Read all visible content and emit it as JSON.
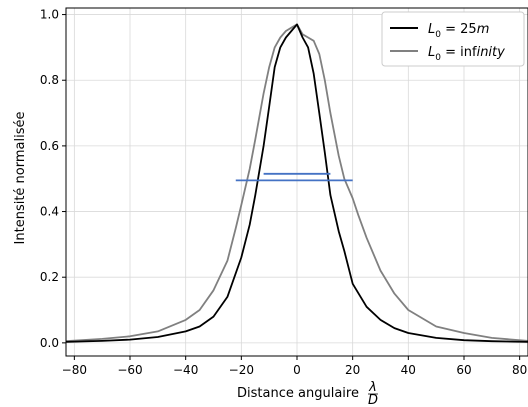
{
  "chart_data": {
    "type": "line",
    "xlabel": "Distance angulaire",
    "xlabel_frac": {
      "num": "λ",
      "den": "D"
    },
    "ylabel": "Intensité normalisée",
    "xlim": [
      -83,
      83
    ],
    "ylim": [
      -0.04,
      1.02
    ],
    "xticks": [
      -80,
      -60,
      -40,
      -20,
      0,
      20,
      40,
      60,
      80
    ],
    "yticks": [
      0.0,
      0.2,
      0.4,
      0.6,
      0.8,
      1.0
    ],
    "xtick_labels": [
      "−80",
      "−60",
      "−40",
      "−20",
      "0",
      "20",
      "40",
      "60",
      "80"
    ],
    "ytick_labels": [
      "0.0",
      "0.2",
      "0.4",
      "0.6",
      "0.8",
      "1.0"
    ],
    "grid": true,
    "legend_position": "top-right",
    "series": [
      {
        "name": "L0 = 25m",
        "legend": {
          "base": "L",
          "sub": "0",
          "rest": " = 25",
          "it": "m"
        },
        "color": "#000000",
        "x": [
          -83,
          -70,
          -60,
          -50,
          -40,
          -35,
          -30,
          -25,
          -20,
          -17,
          -15,
          -12,
          -10,
          -8,
          -6,
          -4,
          -2,
          0,
          2,
          4,
          6,
          8,
          10,
          12,
          15,
          17,
          20,
          25,
          30,
          35,
          40,
          50,
          60,
          70,
          83
        ],
        "y": [
          0.003,
          0.006,
          0.01,
          0.018,
          0.035,
          0.05,
          0.08,
          0.14,
          0.26,
          0.36,
          0.45,
          0.6,
          0.72,
          0.84,
          0.9,
          0.93,
          0.95,
          0.97,
          0.93,
          0.9,
          0.82,
          0.7,
          0.58,
          0.45,
          0.34,
          0.28,
          0.18,
          0.11,
          0.07,
          0.045,
          0.03,
          0.015,
          0.008,
          0.005,
          0.003
        ]
      },
      {
        "name": "L0 = infinity",
        "legend": {
          "base": "L",
          "sub": "0",
          "rest": " = inf",
          "it": "inity"
        },
        "color": "#808080",
        "x": [
          -83,
          -70,
          -60,
          -50,
          -40,
          -35,
          -30,
          -25,
          -22,
          -20,
          -17,
          -15,
          -12,
          -10,
          -8,
          -6,
          -4,
          -2,
          0,
          2,
          4,
          6,
          8,
          10,
          12,
          15,
          17,
          20,
          22,
          25,
          30,
          35,
          40,
          50,
          60,
          70,
          83
        ],
        "y": [
          0.005,
          0.012,
          0.02,
          0.035,
          0.07,
          0.1,
          0.16,
          0.25,
          0.35,
          0.42,
          0.53,
          0.62,
          0.76,
          0.84,
          0.9,
          0.93,
          0.95,
          0.96,
          0.97,
          0.94,
          0.93,
          0.92,
          0.88,
          0.8,
          0.7,
          0.57,
          0.5,
          0.44,
          0.39,
          0.32,
          0.22,
          0.15,
          0.1,
          0.05,
          0.03,
          0.015,
          0.006
        ]
      }
    ],
    "hlines": [
      {
        "color": "#4472c4",
        "x": [
          -12,
          12
        ],
        "y": 0.515
      },
      {
        "color": "#4472c4",
        "x": [
          -22,
          20
        ],
        "y": 0.495
      }
    ]
  }
}
